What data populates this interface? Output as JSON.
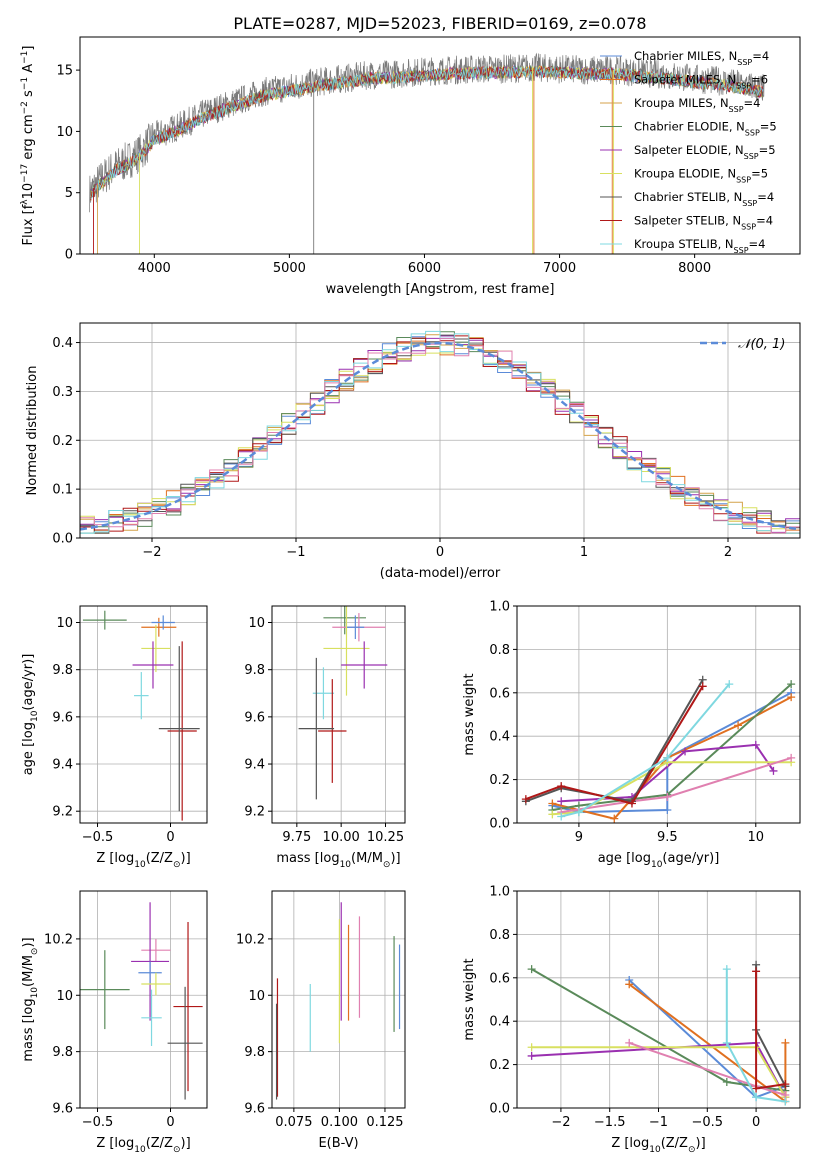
{
  "figure_title": "PLATE=0287, MJD=52023, FIBERID=0169, z=0.078",
  "colors": {
    "chabrier_miles": "#5b8bd8",
    "salpeter_miles": "#e07020",
    "kroupa_miles": "#d4a24a",
    "chabrier_elodie": "#5a8a5a",
    "salpeter_elodie": "#9a30b0",
    "kroupa_elodie": "#d8e060",
    "chabrier_stelib": "#555555",
    "salpeter_stelib": "#b01818",
    "kroupa_stelib": "#7fd8e0",
    "pink": "#e080b0",
    "gaussian": "#5b8bd8",
    "spectrum": "#7a7a7a"
  },
  "chart_data": [
    {
      "id": "spectrum",
      "type": "line",
      "xlabel": "wavelength [Angstrom, rest frame]",
      "ylabel_parts": [
        "Flux [f",
        "λ",
        "10",
        "−17",
        " erg cm",
        "−2",
        " s",
        "−1",
        " A",
        "−1",
        "]"
      ],
      "xlim": [
        3450,
        8780
      ],
      "ylim": [
        0,
        17.7
      ],
      "xticks": [
        4000,
        5000,
        6000,
        7000,
        8000
      ],
      "yticks": [
        0,
        5,
        10,
        15
      ],
      "grid": false,
      "legend_position": "top-right",
      "legend": [
        {
          "label": "Chabrier MILES, N",
          "sub": "SSP",
          "tail": "=4",
          "color_key": "chabrier_miles"
        },
        {
          "label": "Salpeter MILES, N",
          "sub": "SSP",
          "tail": "=6",
          "color_key": "salpeter_miles"
        },
        {
          "label": "Kroupa MILES, N",
          "sub": "SSP",
          "tail": "=4",
          "color_key": "kroupa_miles"
        },
        {
          "label": "Chabrier ELODIE, N",
          "sub": "SSP",
          "tail": "=5",
          "color_key": "chabrier_elodie"
        },
        {
          "label": "Salpeter ELODIE, N",
          "sub": "SSP",
          "tail": "=5",
          "color_key": "salpeter_elodie"
        },
        {
          "label": "Kroupa ELODIE, N",
          "sub": "SSP",
          "tail": "=5",
          "color_key": "kroupa_elodie"
        },
        {
          "label": "Chabrier STELIB, N",
          "sub": "SSP",
          "tail": "=4",
          "color_key": "chabrier_stelib"
        },
        {
          "label": "Salpeter STELIB, N",
          "sub": "SSP",
          "tail": "=4",
          "color_key": "salpeter_stelib"
        },
        {
          "label": "Kroupa STELIB, N",
          "sub": "SSP",
          "tail": "=4",
          "color_key": "kroupa_stelib"
        }
      ],
      "continuum": [
        [
          3520,
          5.0
        ],
        [
          3600,
          6.0
        ],
        [
          3700,
          7.0
        ],
        [
          3800,
          7.6
        ],
        [
          3900,
          8.3
        ],
        [
          4000,
          9.6
        ],
        [
          4200,
          10.5
        ],
        [
          4400,
          11.6
        ],
        [
          4600,
          12.4
        ],
        [
          4800,
          13.2
        ],
        [
          5000,
          13.6
        ],
        [
          5200,
          14.0
        ],
        [
          5400,
          14.3
        ],
        [
          5600,
          14.6
        ],
        [
          5800,
          14.7
        ],
        [
          6000,
          14.9
        ],
        [
          6200,
          15.0
        ],
        [
          6400,
          15.1
        ],
        [
          6600,
          15.1
        ],
        [
          6800,
          15.2
        ],
        [
          7000,
          15.1
        ],
        [
          7200,
          15.0
        ],
        [
          7400,
          15.0
        ],
        [
          7600,
          14.8
        ],
        [
          7800,
          14.6
        ],
        [
          8000,
          14.3
        ],
        [
          8200,
          14.1
        ],
        [
          8400,
          13.7
        ],
        [
          8520,
          13.5
        ]
      ],
      "dips": [
        {
          "x": 3550,
          "y": 0,
          "color_key": "salpeter_stelib"
        },
        {
          "x": 3580,
          "y": 0,
          "color_key": "kroupa_miles"
        },
        {
          "x": 3890,
          "y": 0,
          "color_key": "kroupa_elodie"
        },
        {
          "x": 5180,
          "y": 0,
          "color_key": "spectrum"
        },
        {
          "x": 6800,
          "y": 0,
          "color_key": "kroupa_elodie"
        },
        {
          "x": 6810,
          "y": 0,
          "color_key": "salpeter_miles"
        },
        {
          "x": 7390,
          "y": 0,
          "color_key": "salpeter_miles"
        },
        {
          "x": 7400,
          "y": 0,
          "color_key": "kroupa_elodie"
        }
      ]
    },
    {
      "id": "residual_hist",
      "type": "histogram",
      "xlabel": "(data-model)/error",
      "ylabel": "Normed distribution",
      "xlim": [
        -2.5,
        2.5
      ],
      "ylim": [
        0,
        0.44
      ],
      "xticks": [
        -2,
        -1,
        0,
        1,
        2
      ],
      "yticks": [
        0.0,
        0.1,
        0.2,
        0.3,
        0.4
      ],
      "grid": true,
      "legend_position": "top-right",
      "legend": [
        {
          "label_math": "𝒩(0, 1)",
          "color_key": "gaussian",
          "dashed": true
        }
      ],
      "bin_width": 0.1
    },
    {
      "id": "age_vs_Z",
      "type": "scatter",
      "xlabel_parts": [
        "Z [log",
        "10",
        "(Z/Z",
        "⊙",
        ")]"
      ],
      "ylabel_parts": [
        "age  [log",
        "10",
        "(age/yr)]"
      ],
      "xlim": [
        -0.62,
        0.25
      ],
      "ylim": [
        9.15,
        10.07
      ],
      "xticks": [
        -0.5,
        0.0
      ],
      "yticks": [
        9.2,
        9.4,
        9.6,
        9.8,
        10.0
      ],
      "grid": true,
      "points": [
        {
          "x": -0.45,
          "y": 10.01,
          "xerr": 0.15,
          "yerr": 0.04,
          "color_key": "chabrier_elodie"
        },
        {
          "x": -0.08,
          "y": 9.98,
          "xerr": 0.12,
          "yerr": 0.04,
          "color_key": "salpeter_miles"
        },
        {
          "x": -0.05,
          "y": 10.0,
          "xerr": 0.08,
          "yerr": 0.03,
          "color_key": "chabrier_miles"
        },
        {
          "x": -0.1,
          "y": 9.89,
          "xerr": 0.1,
          "yerr": 0.1,
          "color_key": "kroupa_elodie"
        },
        {
          "x": -0.12,
          "y": 9.82,
          "xerr": 0.14,
          "yerr": 0.1,
          "color_key": "salpeter_elodie"
        },
        {
          "x": -0.2,
          "y": 9.69,
          "xerr": 0.05,
          "yerr": 0.1,
          "color_key": "kroupa_stelib"
        },
        {
          "x": 0.08,
          "y": 9.54,
          "xerr": 0.1,
          "yerr": 0.38,
          "color_key": "salpeter_stelib"
        },
        {
          "x": 0.06,
          "y": 9.55,
          "xerr": 0.14,
          "yerr": 0.35,
          "color_key": "chabrier_stelib"
        }
      ]
    },
    {
      "id": "age_vs_mass",
      "type": "scatter",
      "xlabel_parts": [
        "mass [log",
        "10",
        "(M/M",
        "⊙",
        ")]"
      ],
      "ylabel_parts": [],
      "xlim": [
        9.61,
        10.36
      ],
      "ylim": [
        9.15,
        10.07
      ],
      "xticks": [
        9.75,
        10.0,
        10.25
      ],
      "xtick_labels": [
        "9.75",
        "10.00",
        "10.25"
      ],
      "yticks": [
        9.2,
        9.4,
        9.6,
        9.8,
        10.0
      ],
      "grid": true,
      "points": [
        {
          "x": 10.02,
          "y": 10.02,
          "xerr": 0.12,
          "yerr": 0.07,
          "color_key": "chabrier_elodie"
        },
        {
          "x": 10.1,
          "y": 9.98,
          "xerr": 0.15,
          "yerr": 0.06,
          "color_key": "pink"
        },
        {
          "x": 10.08,
          "y": 9.98,
          "xerr": 0.05,
          "yerr": 0.05,
          "color_key": "chabrier_miles"
        },
        {
          "x": 10.03,
          "y": 9.89,
          "xerr": 0.13,
          "yerr": 0.2,
          "color_key": "kroupa_elodie"
        },
        {
          "x": 10.13,
          "y": 9.82,
          "xerr": 0.13,
          "yerr": 0.1,
          "color_key": "salpeter_elodie"
        },
        {
          "x": 9.9,
          "y": 9.7,
          "xerr": 0.06,
          "yerr": 0.11,
          "color_key": "kroupa_stelib"
        },
        {
          "x": 9.95,
          "y": 9.54,
          "xerr": 0.08,
          "yerr": 0.22,
          "color_key": "salpeter_stelib"
        },
        {
          "x": 9.86,
          "y": 9.55,
          "xerr": 0.1,
          "yerr": 0.3,
          "color_key": "chabrier_stelib"
        }
      ]
    },
    {
      "id": "mass_weight_vs_age",
      "type": "line",
      "xlabel_parts": [
        "age  [log",
        "10",
        "(age/yr)]"
      ],
      "ylabel": "mass weight",
      "xlim": [
        8.65,
        10.25
      ],
      "ylim": [
        0,
        1.0
      ],
      "xticks": [
        9.0,
        9.5,
        10.0
      ],
      "yticks": [
        0.0,
        0.2,
        0.4,
        0.6,
        0.8,
        1.0
      ],
      "grid": true,
      "series": [
        {
          "color_key": "chabrier_miles",
          "x": [
            8.85,
            9.0,
            9.5,
            9.5,
            10.2
          ],
          "y": [
            0.08,
            0.05,
            0.06,
            0.3,
            0.6
          ]
        },
        {
          "color_key": "salpeter_miles",
          "x": [
            8.85,
            9.2,
            9.5,
            9.9,
            10.2
          ],
          "y": [
            0.09,
            0.02,
            0.3,
            0.45,
            0.58
          ]
        },
        {
          "color_key": "chabrier_elodie",
          "x": [
            8.85,
            9.0,
            9.5,
            10.2
          ],
          "y": [
            0.06,
            0.08,
            0.13,
            0.64
          ]
        },
        {
          "color_key": "salpeter_elodie",
          "x": [
            8.9,
            9.3,
            9.6,
            10.0,
            10.1
          ],
          "y": [
            0.1,
            0.12,
            0.33,
            0.36,
            0.24
          ]
        },
        {
          "color_key": "kroupa_elodie",
          "x": [
            8.85,
            9.0,
            9.5,
            10.2
          ],
          "y": [
            0.04,
            0.05,
            0.28,
            0.28
          ]
        },
        {
          "color_key": "pink",
          "x": [
            8.9,
            9.3,
            9.5,
            10.2
          ],
          "y": [
            0.05,
            0.1,
            0.12,
            0.3
          ]
        },
        {
          "color_key": "chabrier_stelib",
          "x": [
            8.7,
            8.9,
            9.3,
            9.7
          ],
          "y": [
            0.1,
            0.16,
            0.1,
            0.66
          ]
        },
        {
          "color_key": "salpeter_stelib",
          "x": [
            8.7,
            8.9,
            9.3,
            9.7
          ],
          "y": [
            0.11,
            0.17,
            0.09,
            0.63
          ]
        },
        {
          "color_key": "kroupa_stelib",
          "x": [
            8.9,
            9.0,
            9.5,
            9.85
          ],
          "y": [
            0.03,
            0.05,
            0.3,
            0.64
          ]
        }
      ]
    },
    {
      "id": "mass_vs_Z",
      "type": "scatter",
      "xlabel_parts": [
        "Z [log",
        "10",
        "(Z/Z",
        "⊙",
        ")]"
      ],
      "ylabel_parts": [
        "mass [log",
        "10",
        "(M/M",
        "⊙",
        ")]"
      ],
      "xlim": [
        -0.62,
        0.25
      ],
      "ylim": [
        9.6,
        10.37
      ],
      "xticks": [
        -0.5,
        0.0
      ],
      "yticks": [
        9.6,
        9.8,
        10.0,
        10.2
      ],
      "grid": true,
      "points": [
        {
          "x": -0.45,
          "y": 10.02,
          "xerr": 0.17,
          "yerr": 0.14,
          "color_key": "chabrier_elodie"
        },
        {
          "x": -0.1,
          "y": 10.16,
          "xerr": 0.1,
          "yerr": 0.04,
          "color_key": "pink"
        },
        {
          "x": -0.14,
          "y": 10.12,
          "xerr": 0.13,
          "yerr": 0.21,
          "color_key": "salpeter_elodie"
        },
        {
          "x": -0.14,
          "y": 10.08,
          "xerr": 0.08,
          "yerr": 0.04,
          "color_key": "chabrier_miles"
        },
        {
          "x": -0.1,
          "y": 10.04,
          "xerr": 0.1,
          "yerr": 0.04,
          "color_key": "kroupa_elodie"
        },
        {
          "x": -0.13,
          "y": 9.92,
          "xerr": 0.07,
          "yerr": 0.1,
          "color_key": "kroupa_stelib"
        },
        {
          "x": 0.12,
          "y": 9.96,
          "xerr": 0.1,
          "yerr": 0.3,
          "color_key": "salpeter_stelib"
        },
        {
          "x": 0.1,
          "y": 9.83,
          "xerr": 0.12,
          "yerr": 0.2,
          "color_key": "chabrier_stelib"
        }
      ]
    },
    {
      "id": "mass_vs_ebv",
      "type": "scatter",
      "xlabel": "E(B-V)",
      "ylabel_parts": [],
      "xlim": [
        0.063,
        0.136
      ],
      "ylim": [
        9.6,
        10.37
      ],
      "xticks": [
        0.075,
        0.1,
        0.125
      ],
      "xtick_labels": [
        "0.075",
        "0.100",
        "0.125"
      ],
      "yticks": [
        9.6,
        9.8,
        10.0,
        10.2
      ],
      "grid": true,
      "points": [
        {
          "x": 0.066,
          "y": 9.85,
          "yerr": 0.21,
          "color_key": "salpeter_stelib"
        },
        {
          "x": 0.0655,
          "y": 9.8,
          "yerr": 0.17,
          "color_key": "chabrier_stelib"
        },
        {
          "x": 0.084,
          "y": 9.92,
          "yerr": 0.12,
          "color_key": "kroupa_stelib"
        },
        {
          "x": 0.1,
          "y": 10.05,
          "yerr": 0.22,
          "color_key": "kroupa_elodie"
        },
        {
          "x": 0.101,
          "y": 10.12,
          "yerr": 0.21,
          "color_key": "salpeter_elodie"
        },
        {
          "x": 0.105,
          "y": 10.08,
          "yerr": 0.17,
          "color_key": "salpeter_miles"
        },
        {
          "x": 0.111,
          "y": 10.1,
          "yerr": 0.18,
          "color_key": "pink"
        },
        {
          "x": 0.13,
          "y": 10.04,
          "yerr": 0.17,
          "color_key": "chabrier_elodie"
        },
        {
          "x": 0.133,
          "y": 10.03,
          "yerr": 0.15,
          "color_key": "chabrier_miles"
        }
      ]
    },
    {
      "id": "mass_weight_vs_Z",
      "type": "line",
      "xlabel_parts": [
        "Z [log",
        "10",
        "(Z/Z",
        "⊙",
        ")]"
      ],
      "ylabel": "mass weight",
      "xlim": [
        -2.45,
        0.45
      ],
      "ylim": [
        0,
        1.0
      ],
      "xticks": [
        -2.0,
        -1.5,
        -1.0,
        -0.5,
        0.0
      ],
      "yticks": [
        0.0,
        0.2,
        0.4,
        0.6,
        0.8,
        1.0
      ],
      "grid": true,
      "series": [
        {
          "color_key": "chabrier_miles",
          "x": [
            -1.3,
            0.0,
            0.3
          ],
          "y": [
            0.59,
            0.05,
            0.1
          ]
        },
        {
          "color_key": "salpeter_miles",
          "x": [
            -1.3,
            0.3,
            0.3
          ],
          "y": [
            0.57,
            0.03,
            0.3
          ]
        },
        {
          "color_key": "chabrier_elodie",
          "x": [
            -2.3,
            -0.3,
            0.3
          ],
          "y": [
            0.64,
            0.12,
            0.08
          ]
        },
        {
          "color_key": "salpeter_elodie",
          "x": [
            -2.3,
            0.0,
            0.3
          ],
          "y": [
            0.24,
            0.3,
            0.05
          ]
        },
        {
          "color_key": "kroupa_elodie",
          "x": [
            -2.3,
            0.0,
            0.3
          ],
          "y": [
            0.28,
            0.28,
            0.05
          ]
        },
        {
          "color_key": "pink",
          "x": [
            -1.3,
            0.0,
            0.3
          ],
          "y": [
            0.3,
            0.1,
            0.06
          ]
        },
        {
          "color_key": "chabrier_stelib",
          "x": [
            0.0,
            0.0,
            0.3
          ],
          "y": [
            0.66,
            0.36,
            0.1
          ]
        },
        {
          "color_key": "salpeter_stelib",
          "x": [
            0.0,
            0.0,
            0.3
          ],
          "y": [
            0.63,
            0.09,
            0.11
          ]
        },
        {
          "color_key": "kroupa_stelib",
          "x": [
            -0.3,
            -0.3,
            0.0,
            0.3
          ],
          "y": [
            0.64,
            0.3,
            0.05,
            0.03
          ]
        }
      ]
    }
  ]
}
